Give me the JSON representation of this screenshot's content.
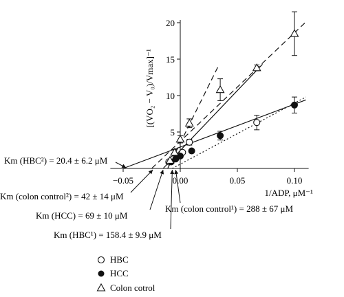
{
  "chart_data": {
    "type": "scatter",
    "title": "",
    "xlabel": "1/ADP, μM⁻¹",
    "ylabel": "[(VO₂ − V₀)/Vmax]⁻¹",
    "xlim": [
      -0.06,
      0.115
    ],
    "ylim": [
      0,
      21
    ],
    "x_ticks": [
      {
        "value": -0.05,
        "label": "−0.05"
      },
      {
        "value": 0.0,
        "label": "0.00"
      },
      {
        "value": 0.05,
        "label": "0.05"
      },
      {
        "value": 0.1,
        "label": "0.10"
      }
    ],
    "y_ticks": [
      {
        "value": 5,
        "label": "5"
      },
      {
        "value": 10,
        "label": "10"
      },
      {
        "value": 15,
        "label": "15"
      },
      {
        "value": 20,
        "label": "20"
      }
    ],
    "series": [
      {
        "name": "HBC",
        "marker": "circle-open",
        "points": [
          {
            "x": -0.01,
            "y": 0.9,
            "err": 0.2
          },
          {
            "x": -0.006,
            "y": 1.3,
            "err": 0.2
          },
          {
            "x": 0.002,
            "y": 2.2,
            "err": 0.3
          },
          {
            "x": 0.008,
            "y": 3.6,
            "err": 0.4
          },
          {
            "x": 0.067,
            "y": 6.3,
            "err": 1.0
          }
        ]
      },
      {
        "name": "HCC",
        "marker": "circle-filled",
        "points": [
          {
            "x": -0.008,
            "y": 0.9,
            "err": 0.2
          },
          {
            "x": -0.004,
            "y": 1.3,
            "err": 0.2
          },
          {
            "x": 0.0,
            "y": 1.7,
            "err": 0.2
          },
          {
            "x": 0.01,
            "y": 2.4,
            "err": 0.3
          },
          {
            "x": 0.035,
            "y": 4.5,
            "err": 0.6
          },
          {
            "x": 0.1,
            "y": 8.7,
            "err": 1.1
          }
        ]
      },
      {
        "name": "Colon cotrol",
        "marker": "triangle-open",
        "points": [
          {
            "x": -0.009,
            "y": 1.1,
            "err": 0.3
          },
          {
            "x": -0.005,
            "y": 2.2,
            "err": 0.4
          },
          {
            "x": 0.0,
            "y": 4.0,
            "err": 0.5
          },
          {
            "x": 0.008,
            "y": 6.2,
            "err": 0.6
          },
          {
            "x": 0.035,
            "y": 10.8,
            "err": 1.5
          },
          {
            "x": 0.067,
            "y": 13.8,
            "err": 0.4
          },
          {
            "x": 0.1,
            "y": 18.5,
            "err": 3.0
          }
        ]
      }
    ],
    "fit_lines": [
      {
        "style": "solid",
        "x1": -0.05,
        "y1": 0.0,
        "x2": 0.11,
        "y2": 9.4
      },
      {
        "style": "dotted",
        "x1": -0.007,
        "y1": 0.0,
        "x2": 0.11,
        "y2": 9.8
      },
      {
        "style": "solid",
        "x1": -0.015,
        "y1": 0.0,
        "x2": 0.072,
        "y2": 14.3
      },
      {
        "style": "dashed",
        "x1": -0.025,
        "y1": 0.0,
        "x2": 0.11,
        "y2": 20.1
      },
      {
        "style": "dashed",
        "x1": -0.011,
        "y1": 0.0,
        "x2": 0.0335,
        "y2": 14.1
      }
    ],
    "annotations": [
      {
        "label": "Km (HBC²) = 20.4 ± 6.2 μM",
        "target_x": -0.048
      },
      {
        "label": "Km (colon control²) = 42 ± 14 μM",
        "target_x": -0.024
      },
      {
        "label": "Km (HCC) = 69 ± 10 μM",
        "target_x": -0.015
      },
      {
        "label": "Km (colon control¹) = 288 ± 67 μM",
        "target_x": -0.004
      },
      {
        "label": "Km (HBC¹) = 158.4 ± 9.9 μM",
        "target_x": -0.007
      }
    ],
    "legend_position": "bottom-left"
  }
}
